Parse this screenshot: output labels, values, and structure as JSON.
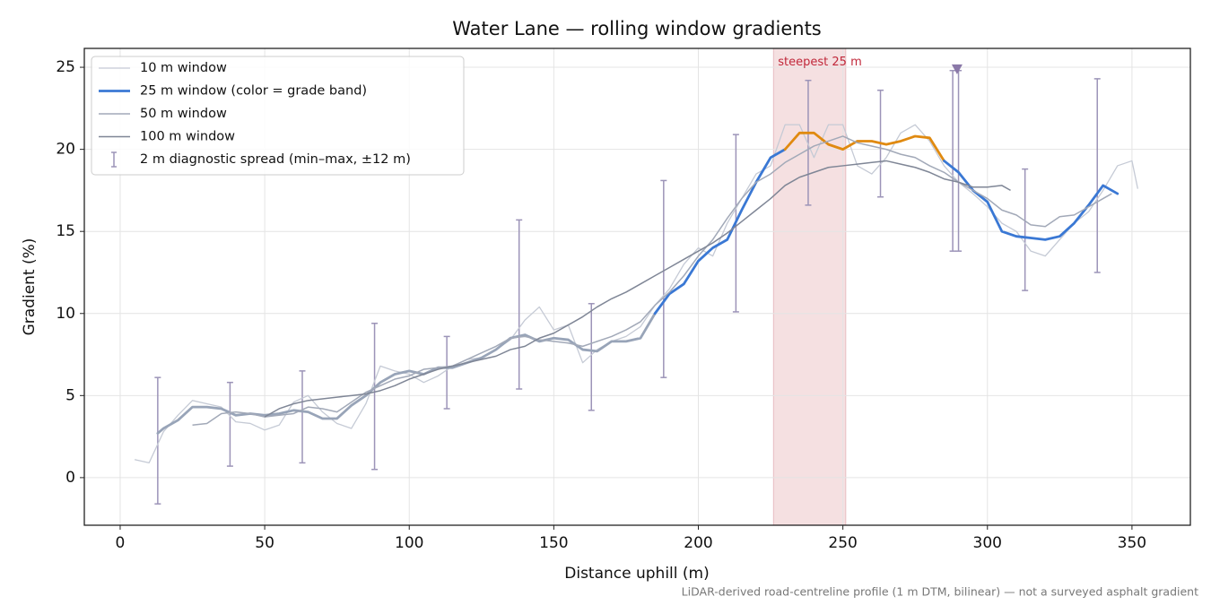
{
  "chart_data": {
    "type": "line",
    "title": "Water Lane — rolling window gradients",
    "x_label": "Distance uphill (m)",
    "y_label": "Gradient (%)",
    "footnote": "LiDAR-derived road-centreline profile (1 m DTM, bilinear) — not a surveyed asphalt gradient",
    "xlim": [
      -12.4,
      370.2
    ],
    "ylim": [
      -2.9,
      26.15
    ],
    "xticks": [
      0,
      50,
      100,
      150,
      200,
      250,
      300,
      350
    ],
    "yticks": [
      0,
      5,
      10,
      15,
      20,
      25
    ],
    "grid": true,
    "legend": "upper left",
    "series": [
      {
        "name": "10 m window",
        "color": "#c5cad5",
        "width": 1.3,
        "x": [
          5,
          10,
          15,
          20,
          25,
          30,
          35,
          40,
          45,
          50,
          55,
          60,
          65,
          70,
          75,
          80,
          85,
          90,
          95,
          100,
          105,
          110,
          115,
          120,
          125,
          130,
          135,
          140,
          145,
          150,
          155,
          160,
          165,
          170,
          175,
          180,
          185,
          190,
          195,
          200,
          205,
          210,
          215,
          220,
          225,
          230,
          235,
          240,
          245,
          250,
          255,
          260,
          265,
          270,
          275,
          280,
          285,
          290,
          295,
          300,
          305,
          310,
          315,
          320,
          325,
          330,
          335,
          340,
          345,
          350,
          352
        ],
        "values": [
          1.1,
          0.9,
          2.8,
          3.8,
          4.7,
          4.5,
          4.3,
          3.4,
          3.3,
          2.9,
          3.2,
          4.6,
          5.0,
          4.0,
          3.3,
          3.0,
          4.5,
          6.8,
          6.5,
          6.3,
          5.8,
          6.2,
          6.8,
          7.2,
          7.3,
          7.8,
          8.4,
          9.6,
          10.4,
          9.0,
          9.3,
          7.0,
          7.8,
          8.3,
          8.6,
          9.2,
          10.5,
          11.5,
          13.0,
          14.0,
          13.5,
          15.5,
          17.0,
          18.5,
          19.0,
          21.5,
          21.5,
          19.5,
          21.5,
          21.5,
          19.0,
          18.5,
          19.5,
          21.0,
          21.5,
          20.5,
          19.0,
          18.0,
          17.3,
          16.5,
          15.5,
          15.0,
          13.8,
          13.5,
          14.5,
          15.5,
          16.2,
          17.5,
          19.0,
          19.3,
          17.6
        ]
      },
      {
        "name": "25 m window (color = grade band)",
        "color": "#3a78d4",
        "width": 2.8,
        "grade_bands": [
          {
            "below": 10,
            "color": "#98a4b8"
          },
          {
            "below": 20,
            "color": "#3a78d4"
          },
          {
            "color": "#e08a10"
          }
        ],
        "x": [
          13,
          15,
          20,
          25,
          30,
          35,
          40,
          45,
          50,
          55,
          60,
          65,
          70,
          75,
          80,
          85,
          90,
          95,
          100,
          105,
          110,
          115,
          120,
          125,
          130,
          135,
          140,
          145,
          150,
          155,
          160,
          165,
          170,
          175,
          180,
          185,
          190,
          195,
          200,
          205,
          210,
          215,
          220,
          225,
          230,
          235,
          240,
          245,
          250,
          255,
          260,
          265,
          270,
          275,
          280,
          285,
          290,
          295,
          300,
          305,
          310,
          315,
          320,
          325,
          330,
          335,
          340,
          345
        ],
        "values": [
          2.7,
          3.0,
          3.5,
          4.3,
          4.3,
          4.2,
          3.8,
          3.9,
          3.8,
          3.9,
          4.1,
          4.0,
          3.6,
          3.6,
          4.4,
          5.0,
          5.8,
          6.3,
          6.5,
          6.3,
          6.7,
          6.7,
          7.0,
          7.3,
          7.8,
          8.5,
          8.7,
          8.3,
          8.5,
          8.4,
          7.8,
          7.7,
          8.3,
          8.3,
          8.5,
          10.0,
          11.2,
          11.8,
          13.2,
          14.0,
          14.5,
          16.3,
          18.0,
          19.5,
          20.0,
          21.0,
          21.0,
          20.3,
          20.0,
          20.5,
          20.5,
          20.3,
          20.5,
          20.8,
          20.7,
          19.3,
          18.6,
          17.5,
          16.8,
          15.0,
          14.7,
          14.6,
          14.5,
          14.7,
          15.5,
          16.6,
          17.8,
          17.3
        ]
      },
      {
        "name": "50 m window",
        "color": "#a2a9b8",
        "width": 1.5,
        "x": [
          25,
          30,
          35,
          40,
          45,
          50,
          55,
          60,
          65,
          70,
          75,
          80,
          85,
          90,
          95,
          100,
          105,
          110,
          115,
          120,
          125,
          130,
          135,
          140,
          145,
          150,
          155,
          160,
          165,
          170,
          175,
          180,
          185,
          190,
          195,
          200,
          205,
          210,
          215,
          220,
          225,
          230,
          235,
          240,
          245,
          250,
          255,
          260,
          265,
          270,
          275,
          280,
          285,
          290,
          295,
          300,
          305,
          310,
          315,
          320,
          325,
          330,
          335,
          340,
          343
        ],
        "values": [
          3.2,
          3.3,
          3.9,
          4.0,
          3.9,
          3.7,
          3.8,
          3.9,
          4.3,
          4.2,
          4.0,
          4.6,
          5.2,
          5.6,
          6.0,
          6.2,
          6.6,
          6.7,
          6.8,
          7.2,
          7.6,
          8.0,
          8.5,
          8.6,
          8.4,
          8.3,
          8.2,
          8.0,
          8.3,
          8.6,
          9.0,
          9.5,
          10.5,
          11.3,
          12.3,
          13.5,
          14.5,
          15.8,
          17.0,
          18.0,
          18.5,
          19.2,
          19.7,
          20.2,
          20.5,
          20.8,
          20.4,
          20.2,
          20.0,
          19.7,
          19.5,
          19.0,
          18.6,
          18.0,
          17.5,
          17.0,
          16.3,
          16.0,
          15.4,
          15.3,
          15.9,
          16.0,
          16.5,
          17.0,
          17.3
        ]
      },
      {
        "name": "100 m window",
        "color": "#7f8696",
        "width": 1.5,
        "x": [
          50,
          55,
          60,
          65,
          70,
          75,
          80,
          85,
          90,
          95,
          100,
          105,
          110,
          115,
          120,
          125,
          130,
          135,
          140,
          145,
          150,
          155,
          160,
          165,
          170,
          175,
          180,
          185,
          190,
          195,
          200,
          205,
          210,
          215,
          220,
          225,
          230,
          235,
          240,
          245,
          250,
          255,
          260,
          265,
          270,
          275,
          280,
          285,
          290,
          295,
          300,
          305,
          308
        ],
        "values": [
          3.7,
          4.2,
          4.5,
          4.7,
          4.8,
          4.9,
          5.0,
          5.1,
          5.3,
          5.6,
          6.0,
          6.3,
          6.6,
          6.8,
          7.0,
          7.2,
          7.4,
          7.8,
          8.0,
          8.5,
          8.8,
          9.3,
          9.8,
          10.4,
          10.9,
          11.3,
          11.8,
          12.3,
          12.8,
          13.3,
          13.8,
          14.3,
          14.9,
          15.6,
          16.3,
          17.0,
          17.8,
          18.3,
          18.6,
          18.9,
          19.0,
          19.1,
          19.2,
          19.3,
          19.1,
          18.9,
          18.6,
          18.2,
          18.0,
          17.7,
          17.7,
          17.8,
          17.5
        ]
      }
    ],
    "spread": {
      "name": "2 m diagnostic spread (min–max, ±12 m)",
      "color": "#9c94b8",
      "x": [
        13,
        38,
        63,
        88,
        113,
        138,
        163,
        188,
        213,
        238,
        263,
        288,
        290,
        313,
        338
      ],
      "min": [
        -1.6,
        0.7,
        0.9,
        0.5,
        4.2,
        5.4,
        4.1,
        6.1,
        10.1,
        16.6,
        17.1,
        13.8,
        13.8,
        11.4,
        12.5
      ],
      "max": [
        6.1,
        5.8,
        6.5,
        9.4,
        8.6,
        15.7,
        10.6,
        18.1,
        20.9,
        24.2,
        23.6,
        24.8,
        24.8,
        18.8,
        24.3
      ]
    },
    "span": {
      "x": [
        226,
        251
      ],
      "color": "#e8b4b8",
      "label": "steepest 25 m",
      "label_color": "#c0283a",
      "label_y": 25.3
    },
    "peak_marker": {
      "x": 289.5,
      "y": 24.9,
      "color": "#8a78a8"
    }
  }
}
